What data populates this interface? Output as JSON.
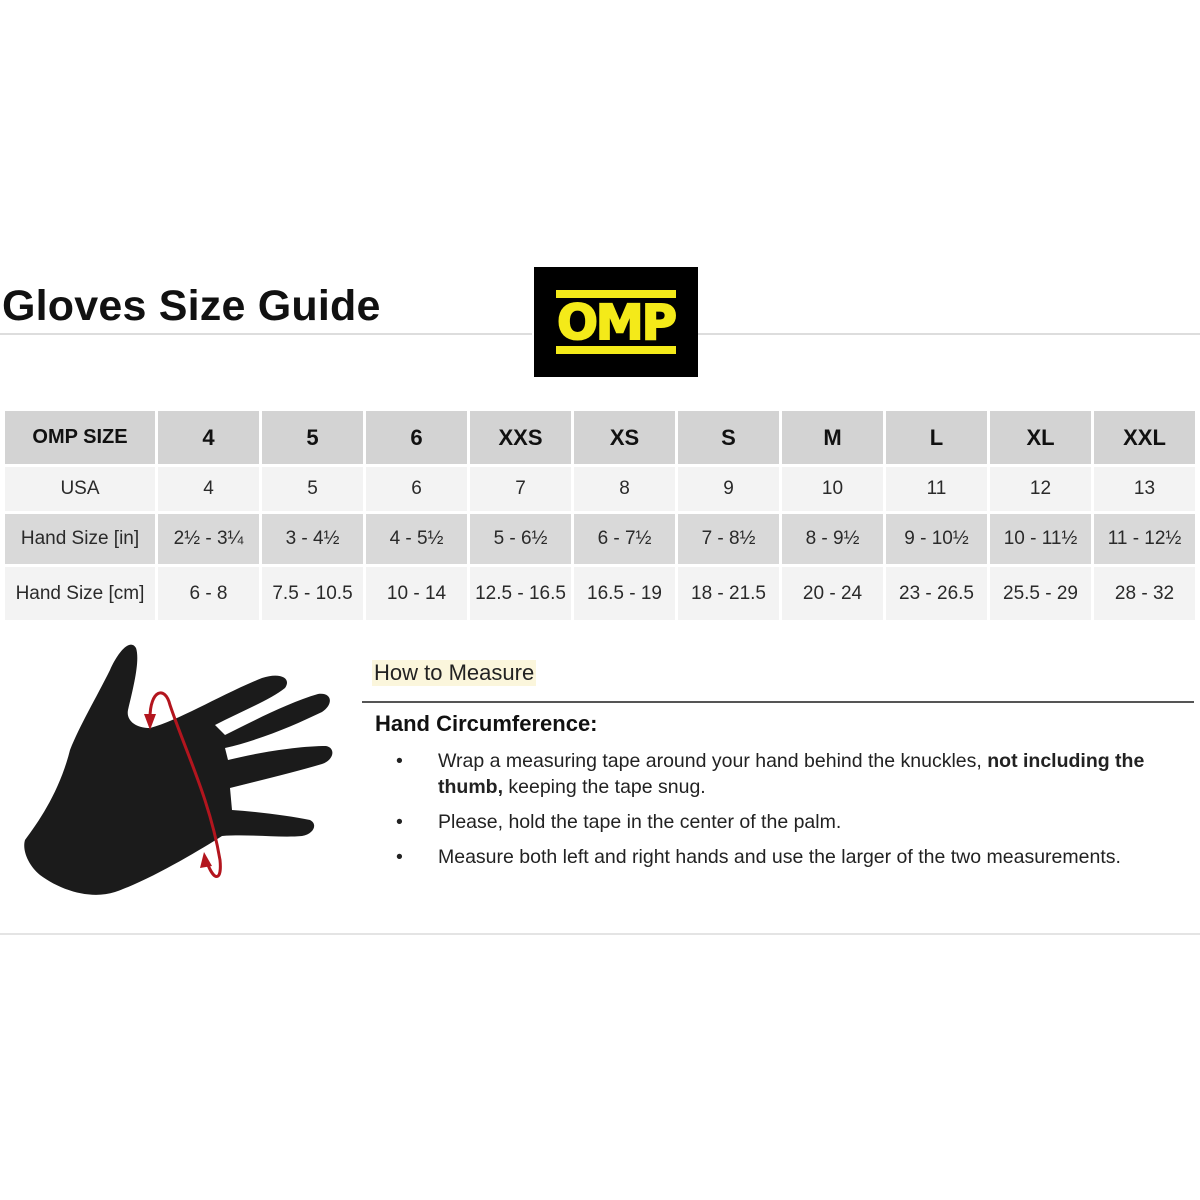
{
  "title": "Gloves Size Guide",
  "logo": {
    "text": "OMP",
    "bg_color": "#000000",
    "fg_color": "#f4ea19"
  },
  "table": {
    "rows": [
      {
        "label": "OMP SIZE",
        "values": [
          "4",
          "5",
          "6",
          "XXS",
          "XS",
          "S",
          "M",
          "L",
          "XL",
          "XXL"
        ]
      },
      {
        "label": "USA",
        "values": [
          "4",
          "5",
          "6",
          "7",
          "8",
          "9",
          "10",
          "11",
          "12",
          "13"
        ]
      },
      {
        "label": "Hand Size [in]",
        "values": [
          "2½ - 3¼",
          "3 - 4½",
          "4 - 5½",
          "5 - 6½",
          "6 - 7½",
          "7 - 8½",
          "8 - 9½",
          "9 - 10½",
          "10 - 11½",
          "11 - 12½"
        ]
      },
      {
        "label": "Hand Size [cm]",
        "values": [
          "6 - 8",
          "7.5 - 10.5",
          "10 - 14",
          "12.5 - 16.5",
          "16.5 - 19",
          "18 - 21.5",
          "20 - 24",
          "23 - 26.5",
          "25.5 - 29",
          "28 - 32"
        ]
      }
    ]
  },
  "illustration": {
    "icon": "hand-measure-icon",
    "arrow_color": "#b3151e"
  },
  "how_to": {
    "heading": "How to Measure",
    "subheading": "Hand Circumference:",
    "bullet": "•",
    "steps": [
      {
        "text": "Wrap a measuring tape around your hand behind the knuckles, ",
        "bold": "not including the thumb,",
        "rest": " keeping the tape snug."
      },
      {
        "text": "Please, hold the tape in the center of the palm."
      },
      {
        "text": "Measure both left and right hands and use the larger of the two measurements."
      }
    ]
  }
}
